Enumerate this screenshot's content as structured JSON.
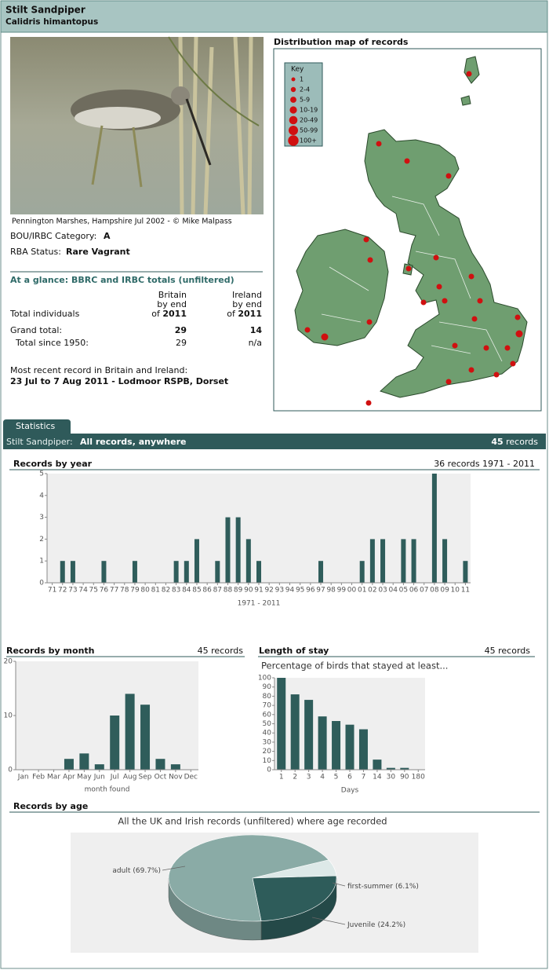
{
  "header": {
    "title": "Stilt Sandpiper",
    "subtitle": "Calidris himantopus"
  },
  "photo_caption": "Pennington Marshes, Hampshire Jul 2002 - © Mike Malpass",
  "category": {
    "label": "BOU/IRBC Category:",
    "value": "A"
  },
  "status": {
    "label": "RBA Status:",
    "value": "Rare Vagrant"
  },
  "totals": {
    "title": "At a glance: BBRC and IRBC totals (unfiltered)",
    "row_header": "Total individuals",
    "columns": [
      {
        "name": "Britain",
        "sub": "by end",
        "of": "of",
        "year": "2011"
      },
      {
        "name": "Ireland",
        "sub": "by end",
        "of": "of",
        "year": "2011"
      }
    ],
    "rows": [
      {
        "label": "Grand total:",
        "values": [
          29,
          14
        ]
      },
      {
        "label": "Total since 1950:",
        "values": [
          29,
          "n/a"
        ]
      }
    ]
  },
  "recent": {
    "label": "Most recent record in Britain and Ireland:",
    "value": "23 Jul to 7 Aug 2011 - Lodmoor RSPB, Dorset"
  },
  "map": {
    "title": "Distribution map of records",
    "key_title": "Key",
    "key": [
      "1",
      "2-4",
      "5-9",
      "10-19",
      "20-49",
      "50-99",
      "100+"
    ]
  },
  "tab": "Statistics",
  "filter_bar": {
    "species": "Stilt Sandpiper:",
    "scope": "All records, anywhere",
    "count": 45,
    "count_unit": "records"
  },
  "chart_data": [
    {
      "type": "bar",
      "title": "Records by year",
      "summary": "36 records 1971 - 2011",
      "x_label": "1971 - 2011",
      "categories": [
        "71",
        "72",
        "73",
        "74",
        "75",
        "76",
        "77",
        "78",
        "79",
        "80",
        "81",
        "82",
        "83",
        "84",
        "85",
        "86",
        "87",
        "88",
        "89",
        "90",
        "91",
        "92",
        "93",
        "94",
        "95",
        "96",
        "97",
        "98",
        "99",
        "00",
        "01",
        "02",
        "03",
        "04",
        "05",
        "06",
        "07",
        "08",
        "09",
        "10",
        "11"
      ],
      "values": [
        0,
        1,
        1,
        0,
        0,
        1,
        0,
        0,
        1,
        0,
        0,
        0,
        1,
        1,
        2,
        0,
        1,
        3,
        3,
        2,
        1,
        0,
        0,
        0,
        0,
        0,
        1,
        0,
        0,
        0,
        1,
        2,
        2,
        0,
        2,
        2,
        0,
        5,
        2,
        0,
        1
      ],
      "color": "#2f5d5b",
      "ylim": [
        0,
        5
      ],
      "yticks": [
        0,
        1,
        2,
        3,
        4,
        5
      ],
      "grid": false
    },
    {
      "type": "bar",
      "title": "Records by month",
      "summary": "45 records",
      "x_label": "month found",
      "categories": [
        "Jan",
        "Feb",
        "Mar",
        "Apr",
        "May",
        "Jun",
        "Jul",
        "Aug",
        "Sep",
        "Oct",
        "Nov",
        "Dec"
      ],
      "values": [
        0,
        0,
        0,
        2,
        3,
        1,
        10,
        14,
        12,
        2,
        1,
        0
      ],
      "color": "#2f5d5b",
      "ylim": [
        0,
        20
      ],
      "yticks": [
        0,
        10,
        20
      ],
      "grid": false
    },
    {
      "type": "bar",
      "title": "Length of stay",
      "summary": "45 records",
      "subtitle": "Percentage of birds that stayed at least...",
      "x_label": "Days",
      "categories": [
        "1",
        "2",
        "3",
        "4",
        "5",
        "6",
        "7",
        "14",
        "30",
        "90",
        "180"
      ],
      "values": [
        100,
        82,
        76,
        58,
        53,
        49,
        44,
        11,
        2,
        2,
        0
      ],
      "color": "#2f5d5b",
      "ylim": [
        0,
        100
      ],
      "yticks": [
        0,
        10,
        20,
        30,
        40,
        50,
        60,
        70,
        80,
        90,
        100
      ],
      "grid": false
    },
    {
      "type": "pie",
      "title": "Records by age",
      "subtitle": "All the UK and Irish records (unfiltered) where age recorded",
      "categories": [
        "first-summer",
        "Juvenile",
        "adult"
      ],
      "values": [
        6.1,
        24.2,
        69.7
      ],
      "value_labels": [
        "(6.1%)",
        "(24.2%)",
        "(69.7%)"
      ],
      "colors": [
        "#dde9e8",
        "#2e5c5a",
        "#8aaba6"
      ]
    }
  ]
}
